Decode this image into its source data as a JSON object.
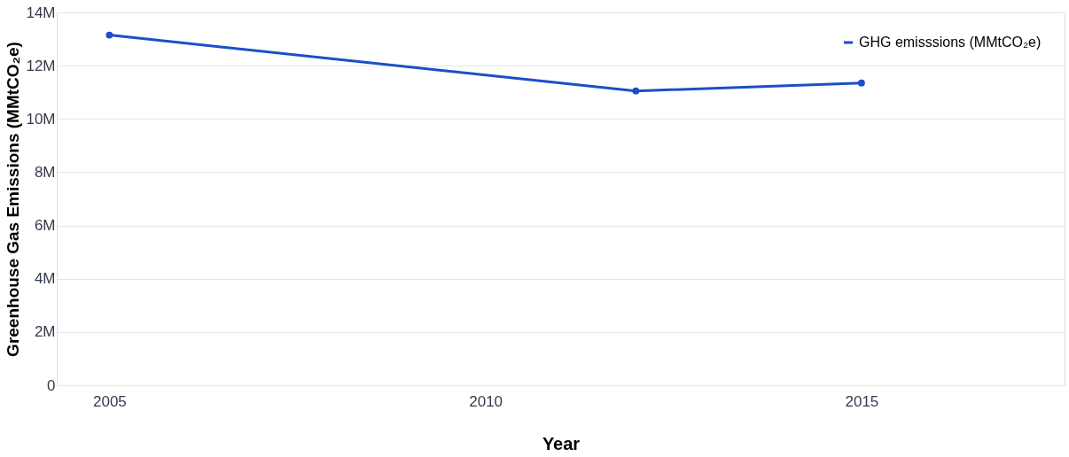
{
  "chart_data": {
    "type": "line",
    "xlabel": "Year",
    "ylabel": "Greenhouse Gas Emissions (MMtCO₂e)",
    "x": [
      2005,
      2012,
      2015
    ],
    "series": [
      {
        "name": "GHG emisssions (MMtCO₂e)",
        "color": "#1a4fc9",
        "values": [
          13150000,
          11050000,
          11350000
        ]
      }
    ],
    "xlim": [
      2004.3,
      2017.7
    ],
    "xticks": [
      2005,
      2010,
      2015
    ],
    "ylim": [
      0,
      14000000
    ],
    "yticks": [
      0,
      {
        "value": 2000000,
        "label": "2M"
      },
      {
        "value": 4000000,
        "label": "4M"
      },
      {
        "value": 6000000,
        "label": "6M"
      },
      {
        "value": 8000000,
        "label": "8M"
      },
      {
        "value": 10000000,
        "label": "10M"
      },
      {
        "value": 12000000,
        "label": "12M"
      },
      {
        "value": 14000000,
        "label": "14M"
      }
    ],
    "grid": "y",
    "legend": "top right",
    "marker": "circle",
    "line_style": "solid"
  }
}
